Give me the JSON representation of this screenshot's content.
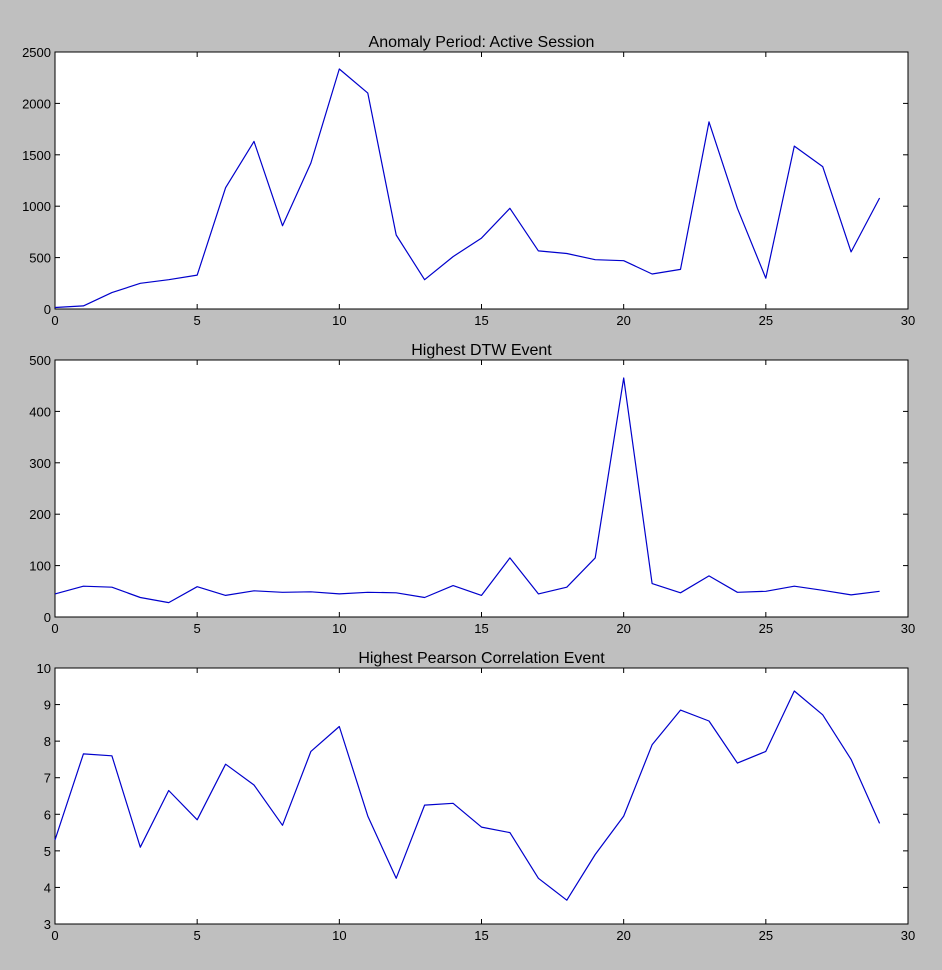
{
  "figure": {
    "background": "#bfbfbf",
    "plot_background": "#ffffff"
  },
  "chart_data": [
    {
      "type": "line",
      "title": "Anomaly Period: Active Session",
      "xlabel": "",
      "ylabel": "",
      "xlim": [
        0,
        30
      ],
      "ylim": [
        0,
        2500
      ],
      "xticks": [
        0,
        5,
        10,
        15,
        20,
        25,
        30
      ],
      "yticks": [
        0,
        500,
        1000,
        1500,
        2000,
        2500
      ],
      "grid": false,
      "series": [
        {
          "color": "#0000cc",
          "x": [
            0,
            1,
            2,
            3,
            4,
            5,
            6,
            7,
            8,
            9,
            10,
            11,
            12,
            13,
            14,
            15,
            16,
            17,
            18,
            19,
            20,
            21,
            22,
            23,
            24,
            25,
            26,
            27,
            28,
            29
          ],
          "values": [
            15,
            30,
            160,
            250,
            285,
            330,
            1180,
            1630,
            810,
            1420,
            2335,
            2100,
            720,
            285,
            510,
            690,
            980,
            565,
            540,
            480,
            470,
            340,
            385,
            1820,
            980,
            300,
            1585,
            1385,
            555,
            1080
          ]
        }
      ]
    },
    {
      "type": "line",
      "title": "Highest DTW Event",
      "xlabel": "",
      "ylabel": "",
      "xlim": [
        0,
        30
      ],
      "ylim": [
        0,
        500
      ],
      "xticks": [
        0,
        5,
        10,
        15,
        20,
        25,
        30
      ],
      "yticks": [
        0,
        100,
        200,
        300,
        400,
        500
      ],
      "grid": false,
      "series": [
        {
          "color": "#0000cc",
          "x": [
            0,
            1,
            2,
            3,
            4,
            5,
            6,
            7,
            8,
            9,
            10,
            11,
            12,
            13,
            14,
            15,
            16,
            17,
            18,
            19,
            20,
            21,
            22,
            23,
            24,
            25,
            26,
            27,
            28,
            29
          ],
          "values": [
            45,
            60,
            58,
            38,
            28,
            59,
            42,
            51,
            48,
            49,
            45,
            48,
            47,
            38,
            61,
            42,
            115,
            45,
            58,
            115,
            465,
            65,
            47,
            80,
            48,
            50,
            60,
            52,
            43,
            50
          ]
        }
      ]
    },
    {
      "type": "line",
      "title": "Highest Pearson Correlation Event",
      "xlabel": "",
      "ylabel": "",
      "xlim": [
        0,
        30
      ],
      "ylim": [
        3,
        10
      ],
      "xticks": [
        0,
        5,
        10,
        15,
        20,
        25,
        30
      ],
      "yticks": [
        3,
        4,
        5,
        6,
        7,
        8,
        9,
        10
      ],
      "grid": false,
      "series": [
        {
          "color": "#0000cc",
          "x": [
            0,
            1,
            2,
            3,
            4,
            5,
            6,
            7,
            8,
            9,
            10,
            11,
            12,
            13,
            14,
            15,
            16,
            17,
            18,
            19,
            20,
            21,
            22,
            23,
            24,
            25,
            26,
            27,
            28,
            29
          ],
          "values": [
            5.3,
            7.65,
            7.6,
            5.1,
            6.65,
            5.85,
            7.37,
            6.8,
            5.7,
            7.72,
            8.4,
            5.95,
            4.25,
            6.25,
            6.3,
            5.65,
            5.5,
            4.25,
            3.65,
            4.9,
            5.95,
            7.9,
            8.85,
            8.55,
            7.4,
            7.72,
            9.37,
            8.72,
            7.5,
            5.75
          ]
        }
      ]
    }
  ]
}
